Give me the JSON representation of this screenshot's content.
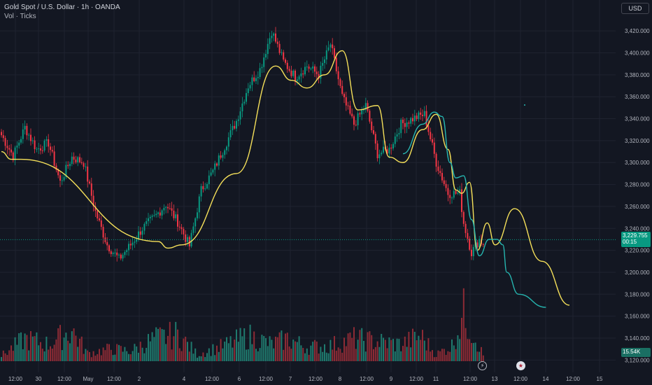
{
  "header": {
    "title": "Gold Spot / U.S. Dollar · 1h · OANDA",
    "indicator": "Vol · Ticks"
  },
  "toolbar": {
    "currency": "USD"
  },
  "price_tag": {
    "price": "3,229.755",
    "countdown": "00:15"
  },
  "volume_tag": "15.54K",
  "events": {
    "bolt_icon": "lightning-icon",
    "flag_icon": "us-flag-icon"
  },
  "colors": {
    "background": "#131722",
    "up": "#089981",
    "down": "#f23645",
    "up_volume": "#1f7a6e",
    "down_volume": "#8d2b35",
    "yellow_drawing": "#f5e05a",
    "teal_drawing": "#26b6b0",
    "grid": "#1f2330",
    "text": "#b2b5be"
  },
  "chart_data": {
    "type": "candlestick",
    "symbol": "Gold Spot / U.S. Dollar",
    "interval": "1h",
    "ylim": [
      3110,
      3445
    ],
    "y_ticks": [
      3120,
      3140,
      3160,
      3180,
      3200,
      3220,
      3240,
      3260,
      3280,
      3300,
      3320,
      3340,
      3360,
      3380,
      3400,
      3420
    ],
    "y_tick_labels": [
      "3,120.000",
      "3,140.000",
      "3,160.000",
      "3,180.000",
      "3,200.000",
      "3,220.000",
      "3,240.000",
      "3,260.000",
      "3,280.000",
      "3,300.000",
      "3,320.000",
      "3,340.000",
      "3,360.000",
      "3,380.000",
      "3,400.000",
      "3,420.000"
    ],
    "x_tick_labels": [
      "12:00",
      "30",
      "12:00",
      "May",
      "12:00",
      "2",
      "4",
      "12:00",
      "6",
      "12:00",
      "7",
      "12:00",
      "8",
      "12:00",
      "9",
      "12:00",
      "11",
      "12:00",
      "13",
      "12:00",
      "14",
      "12:00",
      "15"
    ],
    "anchors": [
      [
        0,
        3325
      ],
      [
        6,
        3306
      ],
      [
        12,
        3332
      ],
      [
        18,
        3312
      ],
      [
        24,
        3318
      ],
      [
        30,
        3282
      ],
      [
        36,
        3305
      ],
      [
        42,
        3300
      ],
      [
        48,
        3255
      ],
      [
        54,
        3225
      ],
      [
        60,
        3212
      ],
      [
        66,
        3225
      ],
      [
        72,
        3240
      ],
      [
        78,
        3250
      ],
      [
        84,
        3262
      ],
      [
        90,
        3246
      ],
      [
        96,
        3224
      ],
      [
        102,
        3275
      ],
      [
        108,
        3292
      ],
      [
        114,
        3315
      ],
      [
        120,
        3338
      ],
      [
        126,
        3370
      ],
      [
        132,
        3385
      ],
      [
        138,
        3420
      ],
      [
        144,
        3392
      ],
      [
        150,
        3378
      ],
      [
        156,
        3388
      ],
      [
        162,
        3380
      ],
      [
        168,
        3408
      ],
      [
        174,
        3360
      ],
      [
        180,
        3335
      ],
      [
        186,
        3352
      ],
      [
        192,
        3308
      ],
      [
        198,
        3312
      ],
      [
        204,
        3335
      ],
      [
        210,
        3340
      ],
      [
        216,
        3344
      ],
      [
        222,
        3300
      ],
      [
        228,
        3272
      ],
      [
        234,
        3272
      ],
      [
        236,
        3245
      ],
      [
        240,
        3218
      ],
      [
        244,
        3230
      ],
      [
        246,
        3225
      ]
    ],
    "volume_peaks": [
      [
        0,
        10
      ],
      [
        12,
        40
      ],
      [
        24,
        30
      ],
      [
        36,
        55
      ],
      [
        44,
        14
      ],
      [
        56,
        22
      ],
      [
        66,
        18
      ],
      [
        78,
        40
      ],
      [
        90,
        48
      ],
      [
        100,
        12
      ],
      [
        114,
        28
      ],
      [
        126,
        45
      ],
      [
        138,
        30
      ],
      [
        146,
        40
      ],
      [
        156,
        25
      ],
      [
        168,
        28
      ],
      [
        180,
        40
      ],
      [
        192,
        35
      ],
      [
        204,
        30
      ],
      [
        214,
        45
      ],
      [
        222,
        12
      ],
      [
        230,
        28
      ],
      [
        236,
        85
      ],
      [
        241,
        50
      ],
      [
        246,
        10
      ]
    ],
    "last_price": 3229.755,
    "last_volume": "15.54K",
    "drawings": {
      "yellow_projection": [
        [
          0,
          3310
        ],
        [
          5,
          3303
        ],
        [
          10,
          3303
        ],
        [
          80,
          3228
        ],
        [
          85,
          3222
        ],
        [
          92,
          3225
        ],
        [
          120,
          3290
        ],
        [
          140,
          3388
        ],
        [
          148,
          3375
        ],
        [
          156,
          3368
        ],
        [
          165,
          3380
        ],
        [
          174,
          3402
        ],
        [
          182,
          3348
        ],
        [
          192,
          3352
        ],
        [
          198,
          3305
        ],
        [
          205,
          3300
        ],
        [
          215,
          3330
        ],
        [
          222,
          3344
        ],
        [
          228,
          3312
        ],
        [
          232,
          3275
        ],
        [
          235,
          3272
        ],
        [
          239,
          3282
        ],
        [
          243,
          3220
        ],
        [
          248,
          3245
        ],
        [
          252,
          3225
        ],
        [
          262,
          3258
        ],
        [
          276,
          3210
        ],
        [
          290,
          3170
        ]
      ],
      "teal_projection": [
        [
          205,
          3308
        ],
        [
          215,
          3335
        ],
        [
          221,
          3346
        ],
        [
          225,
          3342
        ],
        [
          229,
          3300
        ],
        [
          232,
          3286
        ],
        [
          236,
          3288
        ],
        [
          240,
          3248
        ],
        [
          244,
          3215
        ],
        [
          249,
          3230
        ],
        [
          253,
          3230
        ],
        [
          256,
          3225
        ],
        [
          258,
          3200
        ],
        [
          264,
          3180
        ],
        [
          278,
          3168
        ]
      ]
    }
  }
}
